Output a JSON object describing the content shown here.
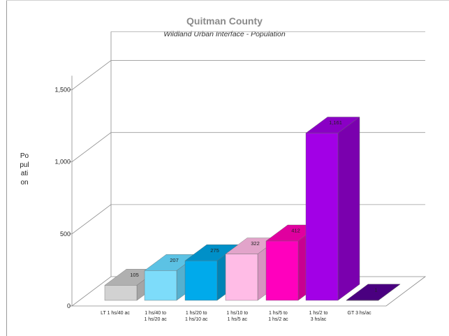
{
  "chart_data": {
    "type": "bar",
    "title": "Quitman County",
    "subtitle": "Wildland Urban Interface - Population",
    "xlabel": "",
    "ylabel": "Population",
    "ylim": [
      0,
      1700
    ],
    "yticks": [
      {
        "value": 0,
        "label": "0"
      },
      {
        "value": 500,
        "label": "500"
      },
      {
        "value": 1000,
        "label": "1,000"
      },
      {
        "value": 1500,
        "label": "1,500"
      }
    ],
    "grid": true,
    "legend": "none",
    "categories": [
      [
        "LT 1 hs/40 ac"
      ],
      [
        "1 hs/40 to",
        "1 hs/20 ac"
      ],
      [
        "1 hs/20 to",
        "1 hs/10 ac"
      ],
      [
        "1 hs/10 to",
        "1 hs/5 ac"
      ],
      [
        "1 hs/5 to",
        "1 hs/2 ac"
      ],
      [
        "1 hs/2 to",
        "3 hs/ac"
      ],
      [
        "GT 3 hs/ac"
      ]
    ],
    "values": [
      105,
      207,
      275,
      322,
      412,
      1161,
      1
    ],
    "data_labels": [
      "105",
      "207",
      "275",
      "322",
      "412",
      "1,161",
      "1"
    ],
    "colors": [
      {
        "front": "#d2d2d2",
        "top": "#b0b0b0",
        "side": "#a5a5a5"
      },
      {
        "front": "#7ddcfa",
        "top": "#5cc2e4",
        "side": "#55b0cf"
      },
      {
        "front": "#00aaeb",
        "top": "#0090c8",
        "side": "#0083b6"
      },
      {
        "front": "#ffbce6",
        "top": "#e2a4ca",
        "side": "#d693bf"
      },
      {
        "front": "#ff00bd",
        "top": "#e0009f",
        "side": "#c90090"
      },
      {
        "front": "#a200e6",
        "top": "#8a00c5",
        "side": "#7a00ae"
      },
      {
        "front": "#3f0070",
        "top": "#4a0080",
        "side": "#330060"
      }
    ]
  }
}
